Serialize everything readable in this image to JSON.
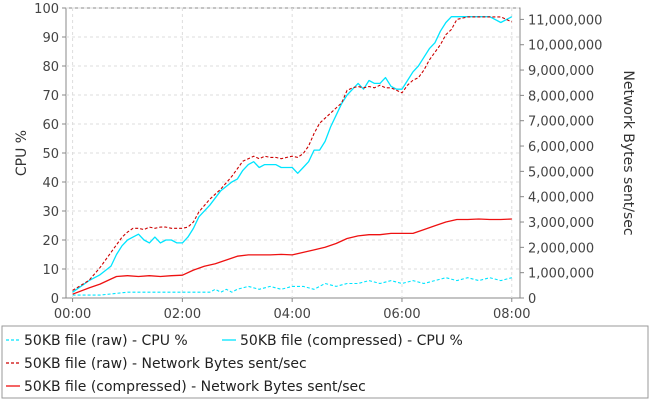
{
  "chart_data": {
    "type": "line",
    "title": "",
    "xlabel": "",
    "ylabel": "CPU %",
    "y2label": "Network Bytes sent/sec",
    "x_ticks": [
      "00:00",
      "02:00",
      "04:00",
      "06:00",
      "08:00"
    ],
    "x_range_hours": [
      -0.12,
      8.15
    ],
    "ylim": [
      0,
      100
    ],
    "y_ticks": [
      0,
      10,
      20,
      30,
      40,
      50,
      60,
      70,
      80,
      90,
      100
    ],
    "y2lim": [
      0,
      11450000
    ],
    "y2_ticks": [
      "0",
      "1,000,000",
      "2,000,000",
      "3,000,000",
      "4,000,000",
      "5,000,000",
      "6,000,000",
      "7,000,000",
      "8,000,000",
      "9,000,000",
      "10,000,000",
      "11,000,000"
    ],
    "grid": true,
    "legend_position": "bottom",
    "series": [
      {
        "name": "50KB file (raw) - CPU %",
        "axis": "left",
        "color": "#00e5ff",
        "dash": "dashed",
        "x": [
          0.0,
          0.5,
          1.0,
          1.5,
          2.0,
          2.5,
          2.6,
          2.7,
          2.8,
          2.9,
          3.0,
          3.2,
          3.4,
          3.6,
          3.8,
          4.0,
          4.2,
          4.4,
          4.6,
          4.8,
          5.0,
          5.2,
          5.4,
          5.6,
          5.8,
          6.0,
          6.2,
          6.4,
          6.6,
          6.8,
          7.0,
          7.2,
          7.4,
          7.6,
          7.8,
          8.0
        ],
        "y": [
          1,
          1,
          2,
          2,
          2,
          2,
          3,
          2,
          3,
          2,
          3,
          4,
          3,
          4,
          3,
          4,
          4,
          3,
          5,
          4,
          5,
          5,
          6,
          5,
          6,
          5,
          6,
          5,
          6,
          7,
          6,
          7,
          6,
          7,
          6,
          7
        ]
      },
      {
        "name": "50KB file (compressed) - CPU %",
        "axis": "left",
        "color": "#00e5ff",
        "dash": "solid",
        "x": [
          0.0,
          0.3,
          0.5,
          0.7,
          0.8,
          0.9,
          1.0,
          1.1,
          1.2,
          1.3,
          1.4,
          1.5,
          1.6,
          1.7,
          1.8,
          1.9,
          2.0,
          2.1,
          2.2,
          2.3,
          2.5,
          2.7,
          2.9,
          3.0,
          3.1,
          3.2,
          3.3,
          3.4,
          3.5,
          3.6,
          3.7,
          3.8,
          3.9,
          4.0,
          4.1,
          4.2,
          4.3,
          4.4,
          4.5,
          4.6,
          4.7,
          4.8,
          4.9,
          5.0,
          5.1,
          5.2,
          5.3,
          5.4,
          5.5,
          5.6,
          5.7,
          5.8,
          5.9,
          6.0,
          6.1,
          6.2,
          6.3,
          6.4,
          6.5,
          6.6,
          6.7,
          6.8,
          6.9,
          7.0,
          7.2,
          7.4,
          7.6,
          7.8,
          8.0
        ],
        "y": [
          2,
          6,
          8,
          11,
          15,
          18,
          20,
          21,
          22,
          20,
          19,
          21,
          19,
          20,
          20,
          19,
          19,
          21,
          24,
          28,
          32,
          37,
          40,
          41,
          44,
          46,
          47,
          45,
          46,
          46,
          46,
          45,
          45,
          45,
          43,
          45,
          47,
          51,
          51,
          54,
          59,
          63,
          67,
          70,
          72,
          74,
          72,
          75,
          74,
          74,
          76,
          73,
          72,
          72,
          75,
          78,
          80,
          83,
          86,
          88,
          92,
          95,
          97,
          97,
          97,
          97,
          97,
          95,
          97
        ]
      },
      {
        "name": "50KB file (raw) - Network Bytes sent/sec",
        "axis": "right",
        "color": "#cc0000",
        "dash": "dashed",
        "x": [
          0.0,
          0.3,
          0.5,
          0.7,
          0.8,
          0.9,
          1.0,
          1.1,
          1.2,
          1.3,
          1.4,
          1.5,
          1.6,
          1.7,
          1.8,
          1.9,
          2.0,
          2.1,
          2.2,
          2.3,
          2.5,
          2.7,
          2.9,
          3.0,
          3.1,
          3.2,
          3.3,
          3.4,
          3.5,
          3.6,
          3.7,
          3.8,
          3.9,
          4.0,
          4.1,
          4.2,
          4.3,
          4.4,
          4.5,
          4.6,
          4.7,
          4.8,
          4.9,
          5.0,
          5.1,
          5.2,
          5.3,
          5.4,
          5.5,
          5.6,
          5.7,
          5.8,
          5.9,
          6.0,
          6.1,
          6.2,
          6.3,
          6.4,
          6.5,
          6.6,
          6.7,
          6.8,
          6.9,
          7.0,
          7.2,
          7.4,
          7.6,
          7.8,
          8.0
        ],
        "y": [
          300000,
          700000,
          1200000,
          1800000,
          2100000,
          2400000,
          2600000,
          2750000,
          2750000,
          2700000,
          2800000,
          2750000,
          2800000,
          2800000,
          2750000,
          2750000,
          2750000,
          2800000,
          3000000,
          3400000,
          3900000,
          4300000,
          4800000,
          5100000,
          5400000,
          5500000,
          5600000,
          5500000,
          5600000,
          5550000,
          5550000,
          5500000,
          5550000,
          5600000,
          5550000,
          5700000,
          6000000,
          6500000,
          6900000,
          7100000,
          7300000,
          7500000,
          7700000,
          8200000,
          8300000,
          8350000,
          8300000,
          8350000,
          8300000,
          8400000,
          8300000,
          8300000,
          8200000,
          8100000,
          8400000,
          8600000,
          8700000,
          9000000,
          9400000,
          9700000,
          10000000,
          10400000,
          10600000,
          11000000,
          11100000,
          11100000,
          11100000,
          11100000,
          10900000
        ]
      },
      {
        "name": "50KB file (compressed) - Network Bytes sent/sec",
        "axis": "right",
        "color": "#ee1111",
        "dash": "solid",
        "x": [
          0.0,
          0.3,
          0.5,
          0.7,
          0.8,
          1.0,
          1.2,
          1.4,
          1.6,
          1.8,
          2.0,
          2.2,
          2.4,
          2.6,
          2.8,
          3.0,
          3.2,
          3.4,
          3.6,
          3.8,
          4.0,
          4.2,
          4.4,
          4.6,
          4.8,
          5.0,
          5.2,
          5.4,
          5.6,
          5.8,
          6.0,
          6.2,
          6.4,
          6.6,
          6.8,
          7.0,
          7.2,
          7.4,
          7.6,
          7.8,
          8.0
        ],
        "y": [
          150000,
          400000,
          550000,
          750000,
          850000,
          880000,
          850000,
          880000,
          850000,
          880000,
          900000,
          1100000,
          1250000,
          1350000,
          1500000,
          1650000,
          1700000,
          1700000,
          1700000,
          1720000,
          1700000,
          1800000,
          1900000,
          2000000,
          2150000,
          2350000,
          2450000,
          2500000,
          2500000,
          2550000,
          2550000,
          2550000,
          2700000,
          2850000,
          3000000,
          3100000,
          3100000,
          3120000,
          3100000,
          3100000,
          3120000
        ]
      }
    ]
  }
}
